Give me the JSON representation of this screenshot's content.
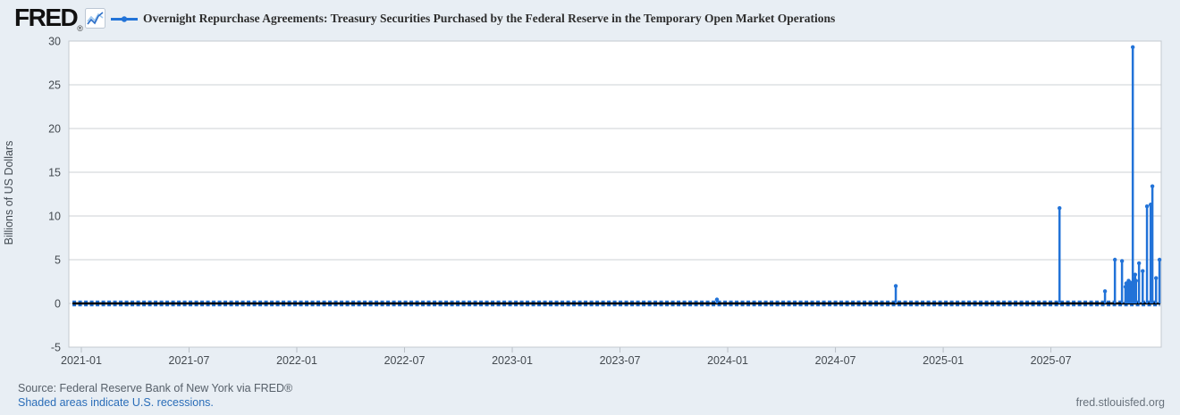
{
  "header": {
    "logo_text": "FRED",
    "registered": "®",
    "series_title": "Overnight Repurchase Agreements: Treasury Securities Purchased by the Federal Reserve in the Temporary Open Market Operations"
  },
  "footer": {
    "source": "Source: Federal Reserve Bank of New York via FRED®",
    "recessions_note": "Shaded areas indicate U.S. recessions.",
    "site": "fred.stlouisfed.org"
  },
  "colors": {
    "canvas_bg": "#e8eef4",
    "plot_bg": "#ffffff",
    "grid": "#cdd1d5",
    "plot_border": "#c3c9cf",
    "tick_mark": "#b9bfc6",
    "axis_text": "#444a50",
    "series_blue": "#2273d8",
    "zero_line": "#000000",
    "link_blue": "#2a6db8",
    "source_gray": "#57606a"
  },
  "chart_data": {
    "type": "line",
    "title": "Overnight Repurchase Agreements: Treasury Securities Purchased by the Federal Reserve in the Temporary Open Market Operations",
    "xlabel": "",
    "ylabel": "Billions of US Dollars",
    "legend_position": "top",
    "grid": "horizontal-only",
    "ylim": [
      -5,
      30
    ],
    "yticks": [
      -5,
      0,
      5,
      10,
      15,
      20,
      25,
      30
    ],
    "xlim": [
      2020.942,
      2026.012
    ],
    "xticks": [
      {
        "x": 2021.0,
        "label": "2021-01"
      },
      {
        "x": 2021.5,
        "label": "2021-07"
      },
      {
        "x": 2022.0,
        "label": "2022-01"
      },
      {
        "x": 2022.5,
        "label": "2022-07"
      },
      {
        "x": 2023.0,
        "label": "2023-01"
      },
      {
        "x": 2023.5,
        "label": "2023-07"
      },
      {
        "x": 2024.0,
        "label": "2024-01"
      },
      {
        "x": 2024.5,
        "label": "2024-07"
      },
      {
        "x": 2025.0,
        "label": "2025-01"
      },
      {
        "x": 2025.5,
        "label": "2025-07"
      }
    ],
    "baseline_value": 0,
    "baseline_x_range": [
      2020.959,
      2026.006
    ],
    "series": [
      {
        "name": "Overnight Repurchase Agreements: Treasury Securities Purchased by the Federal Reserve in the Temporary Open Market Operations",
        "note": "daily values ~0 with isolated spikes; spikes listed as [decimal_year, billions]",
        "spikes": [
          [
            2023.95,
            0.45
          ],
          [
            2024.78,
            2.0
          ],
          [
            2025.54,
            10.9
          ],
          [
            2025.751,
            1.4
          ],
          [
            2025.797,
            5.0
          ],
          [
            2025.83,
            4.85
          ],
          [
            2025.846,
            1.9
          ],
          [
            2025.85,
            2.3
          ],
          [
            2025.8535,
            1.7
          ],
          [
            2025.857,
            2.2
          ],
          [
            2025.8605,
            2.6
          ],
          [
            2025.864,
            2.0
          ],
          [
            2025.8675,
            2.4
          ],
          [
            2025.871,
            1.8
          ],
          [
            2025.8745,
            2.1
          ],
          [
            2025.88,
            29.3
          ],
          [
            2025.8835,
            2.2
          ],
          [
            2025.887,
            2.8
          ],
          [
            2025.891,
            3.3
          ],
          [
            2025.895,
            2.6
          ],
          [
            2025.909,
            4.6
          ],
          [
            2025.926,
            3.7
          ],
          [
            2025.946,
            11.1
          ],
          [
            2025.963,
            11.3
          ],
          [
            2025.971,
            13.4
          ],
          [
            2025.988,
            2.9
          ],
          [
            2026.004,
            5.0
          ]
        ]
      }
    ]
  }
}
